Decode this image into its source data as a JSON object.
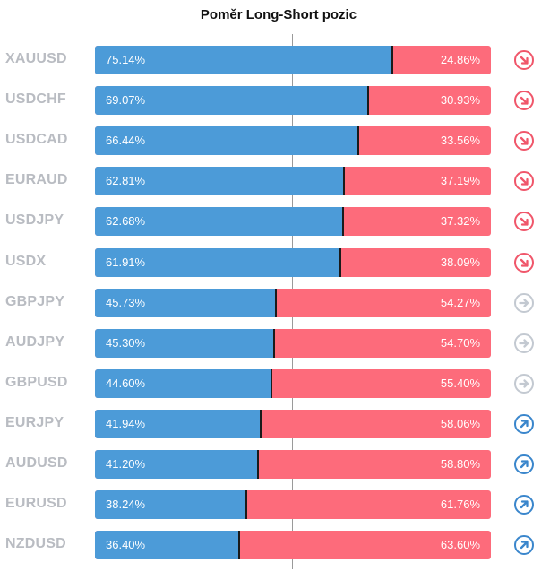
{
  "title": "Poměr Long-Short pozic",
  "colors": {
    "long": "#4c9bd8",
    "short": "#fd6b7b",
    "signal_down": "#f0566a",
    "signal_neutral": "#c3c9d1",
    "signal_up": "#3a86cc"
  },
  "chart_data": {
    "type": "bar",
    "orientation": "horizontal-stacked-100",
    "title": "Poměr Long-Short pozic",
    "categories": [
      "XAUUSD",
      "USDCHF",
      "USDCAD",
      "EURAUD",
      "USDJPY",
      "USDX",
      "GBPJPY",
      "AUDJPY",
      "GBPUSD",
      "EURJPY",
      "AUDUSD",
      "EURUSD",
      "NZDUSD"
    ],
    "series": [
      {
        "values": [
          75.14,
          69.07,
          66.44,
          62.81,
          62.68,
          61.91,
          45.73,
          45.3,
          44.6,
          41.94,
          41.2,
          38.24,
          36.4
        ]
      },
      {
        "values": [
          24.86,
          30.93,
          33.56,
          37.19,
          37.32,
          38.09,
          54.27,
          54.7,
          55.4,
          58.06,
          58.8,
          61.76,
          63.6
        ]
      }
    ],
    "rows": [
      {
        "symbol": "XAUUSD",
        "long_label": "75.14%",
        "short_label": "24.86%",
        "long": 75.14,
        "signal": "down"
      },
      {
        "symbol": "USDCHF",
        "long_label": "69.07%",
        "short_label": "30.93%",
        "long": 69.07,
        "signal": "down"
      },
      {
        "symbol": "USDCAD",
        "long_label": "66.44%",
        "short_label": "33.56%",
        "long": 66.44,
        "signal": "down"
      },
      {
        "symbol": "EURAUD",
        "long_label": "62.81%",
        "short_label": "37.19%",
        "long": 62.81,
        "signal": "down"
      },
      {
        "symbol": "USDJPY",
        "long_label": "62.68%",
        "short_label": "37.32%",
        "long": 62.68,
        "signal": "down"
      },
      {
        "symbol": "USDX",
        "long_label": "61.91%",
        "short_label": "38.09%",
        "long": 61.91,
        "signal": "down"
      },
      {
        "symbol": "GBPJPY",
        "long_label": "45.73%",
        "short_label": "54.27%",
        "long": 45.73,
        "signal": "neutral"
      },
      {
        "symbol": "AUDJPY",
        "long_label": "45.30%",
        "short_label": "54.70%",
        "long": 45.3,
        "signal": "neutral"
      },
      {
        "symbol": "GBPUSD",
        "long_label": "44.60%",
        "short_label": "55.40%",
        "long": 44.6,
        "signal": "neutral"
      },
      {
        "symbol": "EURJPY",
        "long_label": "41.94%",
        "short_label": "58.06%",
        "long": 41.94,
        "signal": "up"
      },
      {
        "symbol": "AUDUSD",
        "long_label": "41.20%",
        "short_label": "58.80%",
        "long": 41.2,
        "signal": "up"
      },
      {
        "symbol": "EURUSD",
        "long_label": "38.24%",
        "short_label": "61.76%",
        "long": 38.24,
        "signal": "up"
      },
      {
        "symbol": "NZDUSD",
        "long_label": "36.40%",
        "short_label": "63.60%",
        "long": 36.4,
        "signal": "up"
      }
    ],
    "xlim": [
      0,
      100
    ],
    "midline": 50,
    "grid": false,
    "legend": "none"
  }
}
